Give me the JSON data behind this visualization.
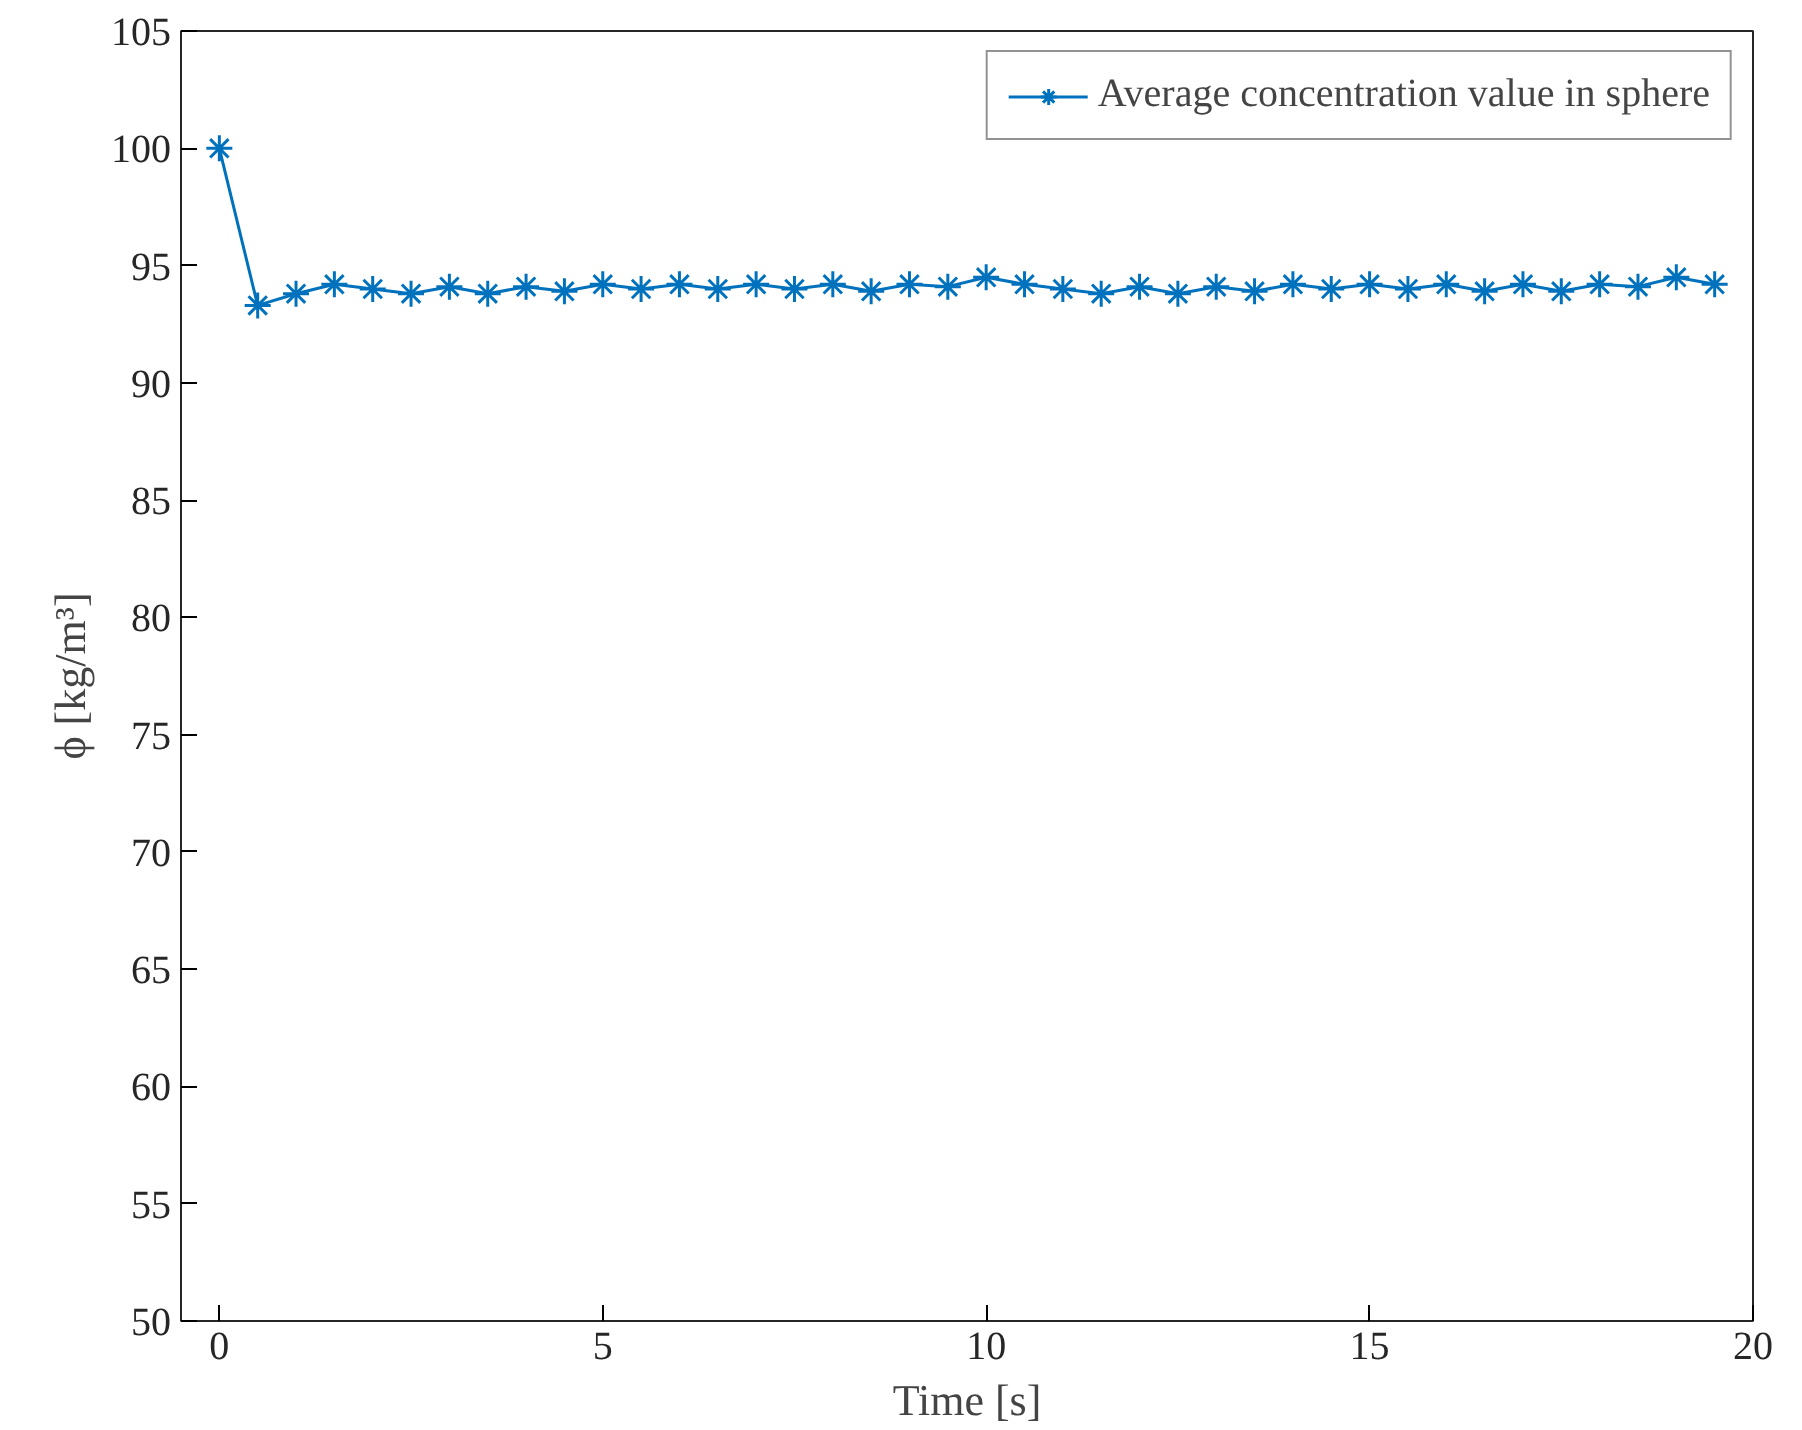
{
  "chart_data": {
    "type": "line",
    "xlabel": "Time [s]",
    "ylabel": "ϕ [kg/m³]",
    "x": [
      0,
      0.5,
      1,
      1.5,
      2,
      2.5,
      3,
      3.5,
      4,
      4.5,
      5,
      5.5,
      6,
      6.5,
      7,
      7.5,
      8,
      8.5,
      9,
      9.5,
      10,
      10.5,
      11,
      11.5,
      12,
      12.5,
      13,
      13.5,
      14,
      14.5,
      15,
      15.5,
      16,
      16.5,
      17,
      17.5,
      18,
      18.5,
      19,
      19.5
    ],
    "series": [
      {
        "name": "Average concentration value in sphere",
        "color": "#0072bd",
        "values": [
          100,
          93.3,
          93.8,
          94.2,
          94.0,
          93.8,
          94.1,
          93.8,
          94.1,
          93.9,
          94.2,
          94.0,
          94.2,
          94.0,
          94.2,
          94.0,
          94.2,
          93.9,
          94.2,
          94.1,
          94.5,
          94.2,
          94.0,
          93.8,
          94.1,
          93.8,
          94.1,
          93.9,
          94.2,
          94.0,
          94.2,
          94.0,
          94.2,
          93.9,
          94.2,
          93.9,
          94.2,
          94.1,
          94.5,
          94.2
        ]
      }
    ],
    "xlim": [
      -0.5,
      20
    ],
    "ylim": [
      50,
      105
    ],
    "xticks": [
      0,
      5,
      10,
      15,
      20
    ],
    "yticks": [
      50,
      55,
      60,
      65,
      70,
      75,
      80,
      85,
      90,
      95,
      100,
      105
    ],
    "grid": false,
    "legend": "top right",
    "marker": "cross",
    "line_style": "solid"
  }
}
